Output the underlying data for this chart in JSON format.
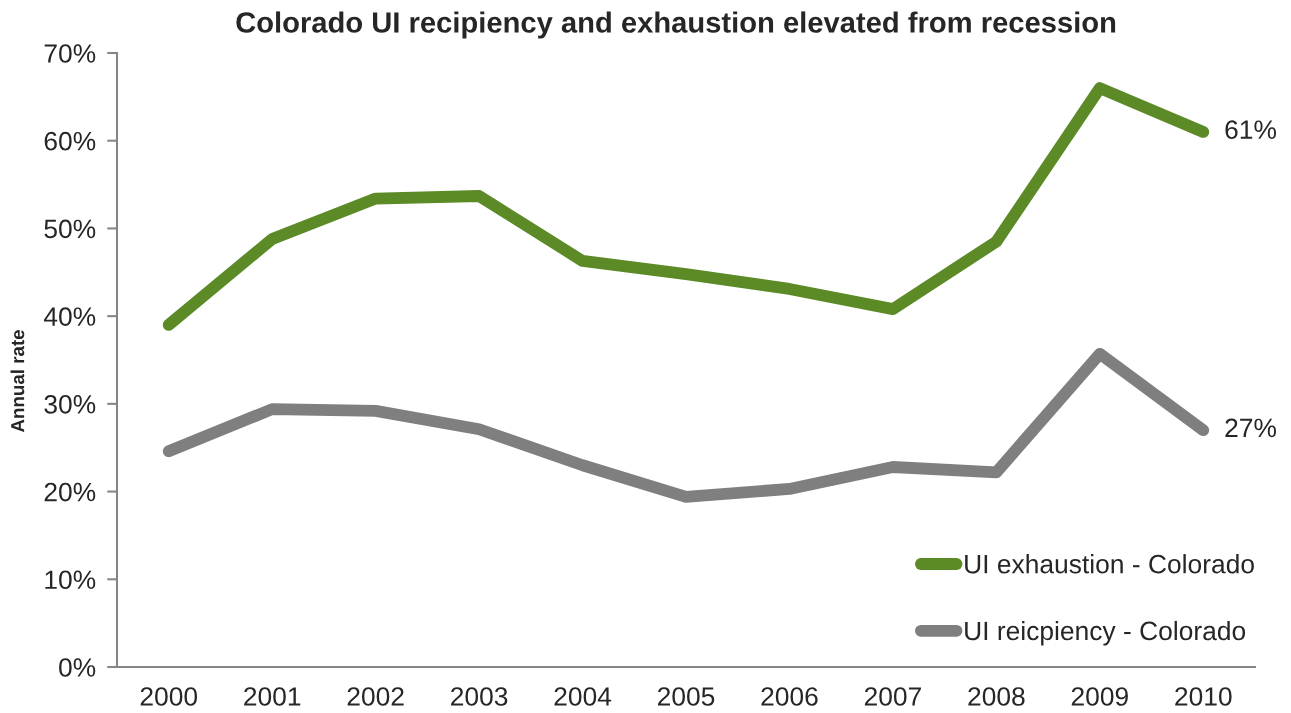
{
  "chart_data": {
    "type": "line",
    "title": "Colorado UI recipiency and exhaustion elevated from recession",
    "ylabel": "Annual rate",
    "categories": [
      "2000",
      "2001",
      "2002",
      "2003",
      "2004",
      "2005",
      "2006",
      "2007",
      "2008",
      "2009",
      "2010"
    ],
    "series": [
      {
        "name": "UI exhaustion - Colorado",
        "color": "#5b8a26",
        "values": [
          39.0,
          48.8,
          53.4,
          53.7,
          46.3,
          44.8,
          43.1,
          40.8,
          48.5,
          66.0,
          61
        ],
        "value_labels": [
          null,
          null,
          null,
          null,
          null,
          null,
          null,
          null,
          null,
          null,
          "61%"
        ]
      },
      {
        "name": "UI reicpiency - Colorado",
        "color": "#7f7f7f",
        "values": [
          24.6,
          29.4,
          29.2,
          27.1,
          23.0,
          19.4,
          20.3,
          22.8,
          22.2,
          35.7,
          27
        ],
        "value_labels": [
          null,
          null,
          null,
          null,
          null,
          null,
          null,
          null,
          null,
          null,
          "27%"
        ]
      }
    ],
    "ylim": [
      0,
      70
    ],
    "yticks": [
      {
        "value": 0,
        "label": "0%"
      },
      {
        "value": 10,
        "label": "10%"
      },
      {
        "value": 20,
        "label": "20%"
      },
      {
        "value": 30,
        "label": "30%"
      },
      {
        "value": 40,
        "label": "40%"
      },
      {
        "value": 50,
        "label": "50%"
      },
      {
        "value": 60,
        "label": "60%"
      },
      {
        "value": 70,
        "label": "70%"
      }
    ],
    "grid": false,
    "legend": "bottom right",
    "line_style": "solid"
  }
}
